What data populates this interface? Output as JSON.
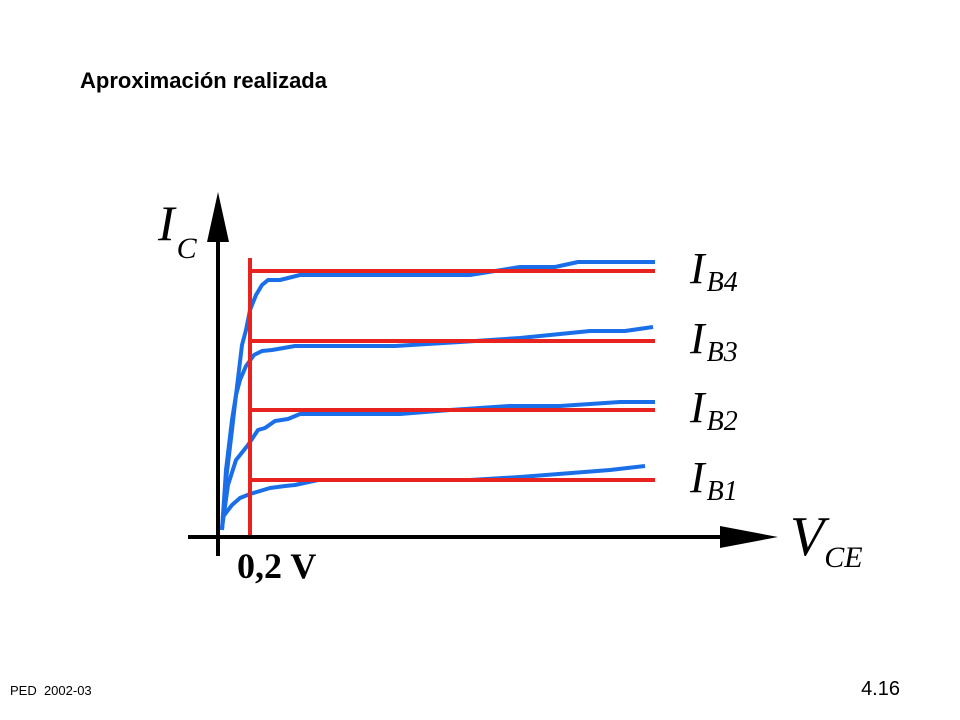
{
  "title": "Aproximación realizada",
  "axes": {
    "y": {
      "main": "I",
      "sub": "C"
    },
    "x": {
      "main": "V",
      "sub": "CE"
    }
  },
  "curves": [
    {
      "main": "I",
      "sub": "B4"
    },
    {
      "main": "I",
      "sub": "B3"
    },
    {
      "main": "I",
      "sub": "B2"
    },
    {
      "main": "I",
      "sub": "B1"
    }
  ],
  "threshold_label": "0,2 V",
  "footer": {
    "left": "PED  2002-03",
    "right": "4.16"
  }
}
